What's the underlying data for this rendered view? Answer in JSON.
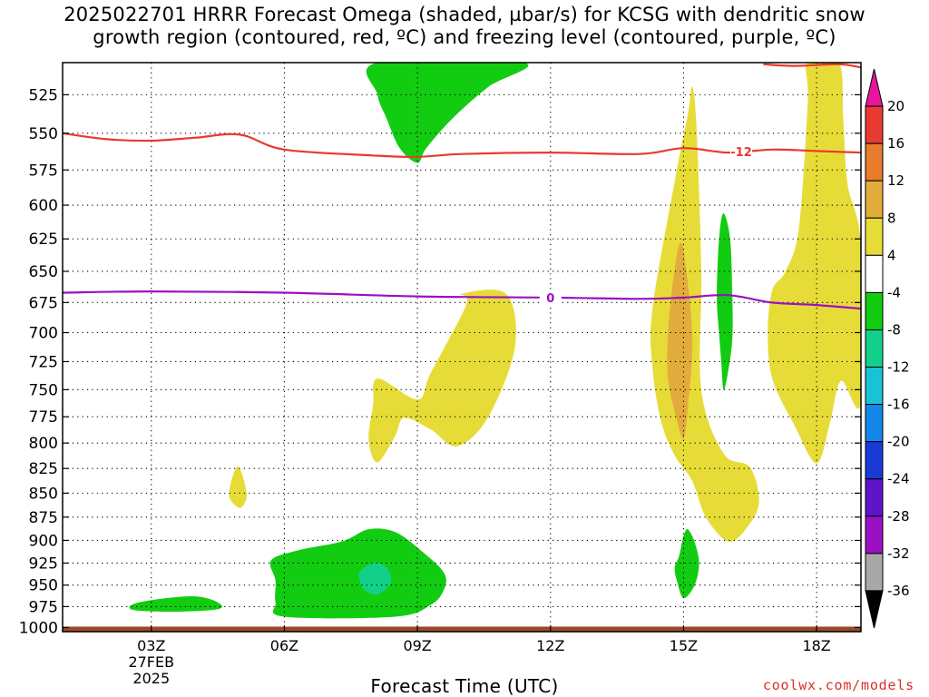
{
  "title_line1": "2025022701 HRRR Forecast Omega (shaded, µbar/s) for KCSG with dendritic snow",
  "title_line2": "growth region (contoured, red, ºC) and freezing level (contoured, purple, ºC)",
  "xlabel": "Forecast Time (UTC)",
  "watermark": "coolwx.com/models",
  "date_line1": "27FEB",
  "date_line2": "2025",
  "colors": {
    "dgz_contour": "#e8392f",
    "freezing_contour": "#9b10c4",
    "ground": "#9a4a22",
    "pos_4_8": "#e7dc37",
    "pos_8_12": "#e2ac3c",
    "neg_4_8": "#12cc12",
    "neg_8_12": "#12d08a"
  },
  "chart_data": {
    "type": "time-height contour",
    "x_range_hours": [
      1,
      19
    ],
    "y_range_hPa": [
      1005,
      505
    ],
    "yscale": "log-pressure",
    "grid": "dotted",
    "x_ticks": [
      {
        "hour": 3,
        "label": "03Z"
      },
      {
        "hour": 6,
        "label": "06Z"
      },
      {
        "hour": 9,
        "label": "09Z"
      },
      {
        "hour": 12,
        "label": "12Z"
      },
      {
        "hour": 15,
        "label": "15Z"
      },
      {
        "hour": 18,
        "label": "18Z"
      }
    ],
    "y_ticks": [
      "525",
      "550",
      "575",
      "600",
      "625",
      "650",
      "675",
      "700",
      "725",
      "750",
      "775",
      "800",
      "825",
      "850",
      "875",
      "900",
      "925",
      "950",
      "975",
      "1000"
    ],
    "colorbar": {
      "labels": [
        "20",
        "16",
        "12",
        "8",
        "4",
        "-4",
        "-8",
        "-12",
        "-16",
        "-20",
        "-24",
        "-28",
        "-32",
        "-36"
      ],
      "colors": [
        "#e8159a",
        "#e83a32",
        "#e87c2c",
        "#e2ac3c",
        "#e7dc37",
        "#ffffff",
        "#12cc12",
        "#12d08a",
        "#18c3d6",
        "#1488ea",
        "#1a3ad6",
        "#5e14c8",
        "#9b10c4",
        "#a8a8a8",
        "#000000"
      ]
    },
    "dgz_contour": {
      "label": "-12",
      "label_hour": 16.3,
      "points": [
        [
          1,
          550
        ],
        [
          2,
          554
        ],
        [
          3,
          555
        ],
        [
          4,
          553
        ],
        [
          5,
          551
        ],
        [
          6,
          561
        ],
        [
          8,
          565
        ],
        [
          9,
          566
        ],
        [
          10,
          564
        ],
        [
          12,
          563
        ],
        [
          14,
          564
        ],
        [
          15,
          560
        ],
        [
          16,
          563
        ],
        [
          17,
          561
        ],
        [
          18,
          562
        ],
        [
          19,
          563
        ]
      ]
    },
    "dgz_contour_upper": {
      "points": [
        [
          16.8,
          506
        ],
        [
          17.5,
          507
        ],
        [
          18.5,
          506
        ],
        [
          19,
          508
        ]
      ]
    },
    "freezing_level": {
      "label": "0",
      "label_hour": 12,
      "points": [
        [
          1,
          667
        ],
        [
          3,
          666
        ],
        [
          6,
          667
        ],
        [
          9,
          670
        ],
        [
          12,
          671
        ],
        [
          14,
          672
        ],
        [
          15,
          671
        ],
        [
          16,
          669
        ],
        [
          17,
          675
        ],
        [
          18,
          677
        ],
        [
          19,
          680
        ]
      ]
    },
    "shaded_regions": [
      {
        "name": "neg-upper-green",
        "range": "-8 to -4",
        "color": "neg_4_8",
        "points": [
          [
            8.1,
            505
          ],
          [
            11.4,
            505
          ],
          [
            10.6,
            520
          ],
          [
            9.8,
            540
          ],
          [
            9.2,
            560
          ],
          [
            9.0,
            570
          ],
          [
            8.6,
            560
          ],
          [
            8.3,
            540
          ],
          [
            8.1,
            525
          ]
        ]
      },
      {
        "name": "neg-low-left-green",
        "range": "-8 to -4",
        "color": "neg_4_8",
        "points": [
          [
            2.6,
            972
          ],
          [
            3.2,
            966
          ],
          [
            4.0,
            963
          ],
          [
            4.5,
            970
          ],
          [
            4.5,
            978
          ],
          [
            3.5,
            981
          ],
          [
            2.6,
            979
          ]
        ]
      },
      {
        "name": "neg-low-mid-green",
        "range": "-8 to -4",
        "color": "neg_4_8",
        "points": [
          [
            5.7,
            922
          ],
          [
            6.3,
            911
          ],
          [
            7.3,
            901
          ],
          [
            7.9,
            888
          ],
          [
            8.5,
            891
          ],
          [
            9.1,
            912
          ],
          [
            9.6,
            936
          ],
          [
            9.6,
            955
          ],
          [
            9.3,
            973
          ],
          [
            8.5,
            987
          ],
          [
            6.0,
            987
          ],
          [
            5.8,
            970
          ],
          [
            5.8,
            945
          ]
        ]
      },
      {
        "name": "neg-low-mid-teal",
        "range": "-12 to -8",
        "color": "neg_8_12",
        "points": [
          [
            7.7,
            935
          ],
          [
            8.0,
            925
          ],
          [
            8.3,
            930
          ],
          [
            8.4,
            947
          ],
          [
            8.1,
            961
          ],
          [
            7.8,
            955
          ],
          [
            7.7,
            945
          ]
        ]
      },
      {
        "name": "neg-15z-green",
        "range": "-8 to -4",
        "color": "neg_4_8",
        "points": [
          [
            14.9,
            917
          ],
          [
            15.0,
            895
          ],
          [
            15.1,
            888
          ],
          [
            15.25,
            902
          ],
          [
            15.35,
            925
          ],
          [
            15.25,
            950
          ],
          [
            15.0,
            965
          ],
          [
            14.85,
            945
          ],
          [
            14.8,
            930
          ]
        ]
      },
      {
        "name": "neg-16z-green",
        "range": "-8 to -4",
        "color": "neg_4_8",
        "points": [
          [
            15.8,
            625
          ],
          [
            15.9,
            606
          ],
          [
            16.05,
            625
          ],
          [
            16.1,
            670
          ],
          [
            16.1,
            705
          ],
          [
            16.0,
            735
          ],
          [
            15.9,
            750
          ],
          [
            15.85,
            725
          ],
          [
            15.8,
            700
          ],
          [
            15.75,
            670
          ]
        ]
      },
      {
        "name": "pos-small-05z",
        "range": "4 to 8",
        "color": "pos_4_8",
        "points": [
          [
            4.75,
            850
          ],
          [
            4.95,
            823
          ],
          [
            5.15,
            850
          ],
          [
            5.05,
            864
          ],
          [
            4.9,
            863
          ]
        ]
      },
      {
        "name": "pos-mid-09z",
        "range": "4 to 8",
        "color": "pos_4_8",
        "points": [
          [
            8.0,
            765
          ],
          [
            8.1,
            740
          ],
          [
            9.0,
            759
          ],
          [
            9.3,
            735
          ],
          [
            10.1,
            677
          ],
          [
            10.0,
            668
          ],
          [
            11.0,
            668
          ],
          [
            11.2,
            712
          ],
          [
            10.6,
            775
          ],
          [
            9.9,
            803
          ],
          [
            9.3,
            787
          ],
          [
            8.7,
            776
          ],
          [
            8.5,
            793
          ],
          [
            8.1,
            819
          ],
          [
            7.9,
            797
          ]
        ]
      },
      {
        "name": "pos-15z-tower",
        "range": "4 to 8",
        "color": "pos_4_8",
        "points": [
          [
            14.3,
            680
          ],
          [
            14.8,
            583
          ],
          [
            15.1,
            537
          ],
          [
            15.2,
            520
          ],
          [
            15.3,
            550
          ],
          [
            15.4,
            650
          ],
          [
            15.4,
            750
          ],
          [
            15.9,
            810
          ],
          [
            16.5,
            824
          ],
          [
            16.7,
            860
          ],
          [
            16.4,
            888
          ],
          [
            16.0,
            901
          ],
          [
            15.5,
            875
          ],
          [
            15.2,
            838
          ],
          [
            14.8,
            812
          ],
          [
            14.5,
            780
          ],
          [
            14.3,
            730
          ]
        ]
      },
      {
        "name": "pos-15z-orange",
        "range": "8 to 12",
        "color": "pos_8_12",
        "points": [
          [
            14.65,
            700
          ],
          [
            14.8,
            648
          ],
          [
            14.95,
            628
          ],
          [
            15.1,
            660
          ],
          [
            15.2,
            710
          ],
          [
            15.1,
            765
          ],
          [
            15.0,
            796
          ],
          [
            14.8,
            770
          ],
          [
            14.65,
            740
          ]
        ]
      },
      {
        "name": "pos-18z-right",
        "range": "4 to 8",
        "color": "pos_4_8",
        "points": [
          [
            17.8,
            505
          ],
          [
            18.5,
            505
          ],
          [
            18.6,
            540
          ],
          [
            18.7,
            585
          ],
          [
            19.0,
            630
          ],
          [
            19.0,
            762
          ],
          [
            18.55,
            742
          ],
          [
            18.3,
            781
          ],
          [
            18.0,
            820
          ],
          [
            17.5,
            783
          ],
          [
            17.0,
            740
          ],
          [
            16.9,
            700
          ],
          [
            17.0,
            665
          ],
          [
            17.3,
            650
          ],
          [
            17.6,
            617
          ],
          [
            17.8,
            530
          ]
        ]
      }
    ]
  }
}
